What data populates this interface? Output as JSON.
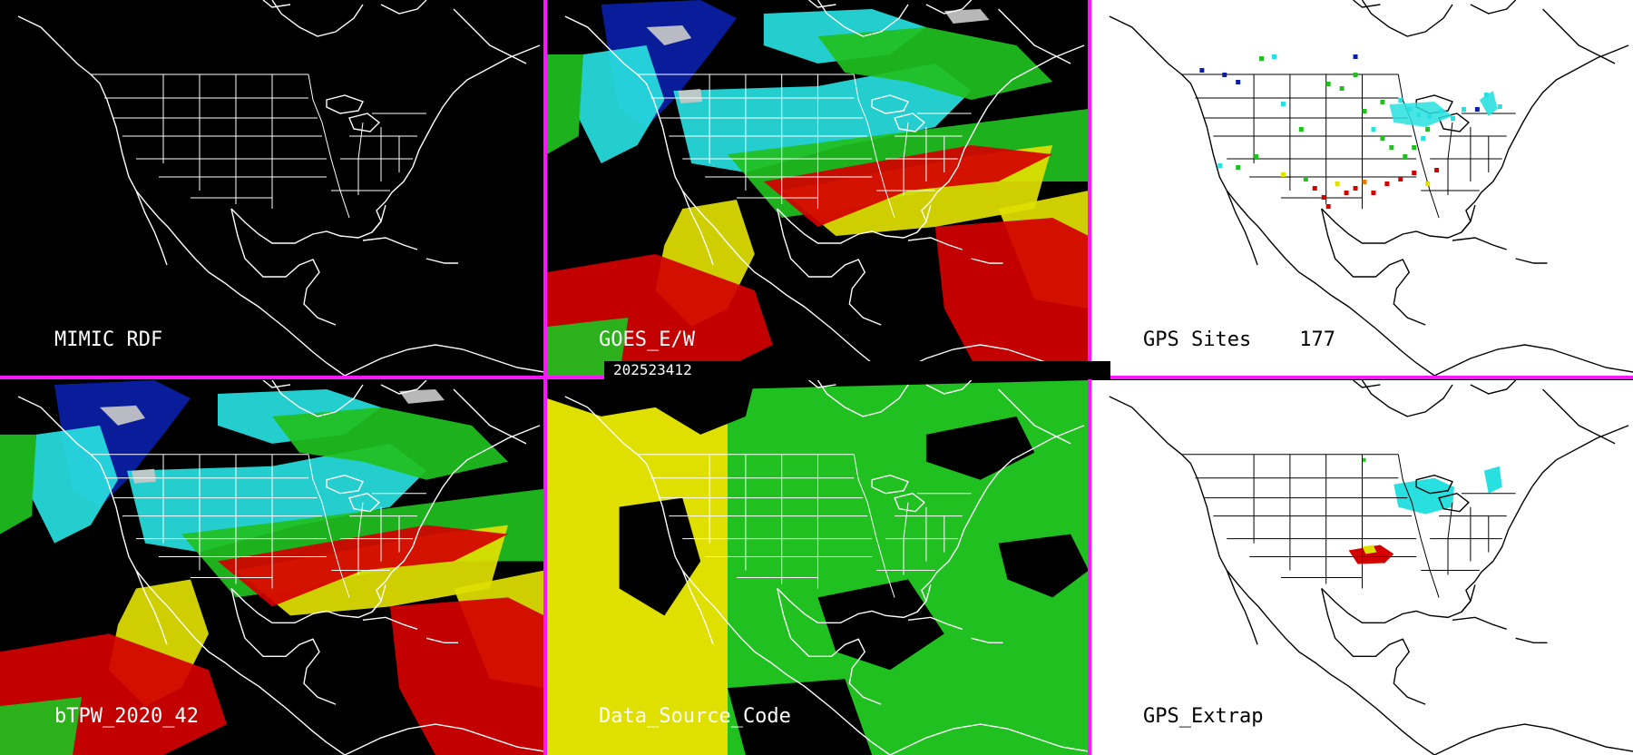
{
  "panels": {
    "mimic_rdf": {
      "label": "MIMIC RDF"
    },
    "goes_ew": {
      "label": "GOES_E/W"
    },
    "gps_sites": {
      "label": "GPS Sites",
      "count": "177"
    },
    "btpw": {
      "label": "bTPW_2020_42"
    },
    "data_source_code": {
      "label": "Data_Source_Code"
    },
    "gps_extrap": {
      "label": "GPS_Extrap"
    }
  },
  "timestamp": "202523412",
  "colors": {
    "divider": "#ff14ff",
    "background_dark": "#000000",
    "background_light": "#ffffff",
    "blue": "#0a1fa8",
    "cyan": "#28e0e0",
    "green": "#1fc01f",
    "yellow": "#e0e000",
    "red": "#d40000",
    "gray": "#c8c8c8"
  }
}
